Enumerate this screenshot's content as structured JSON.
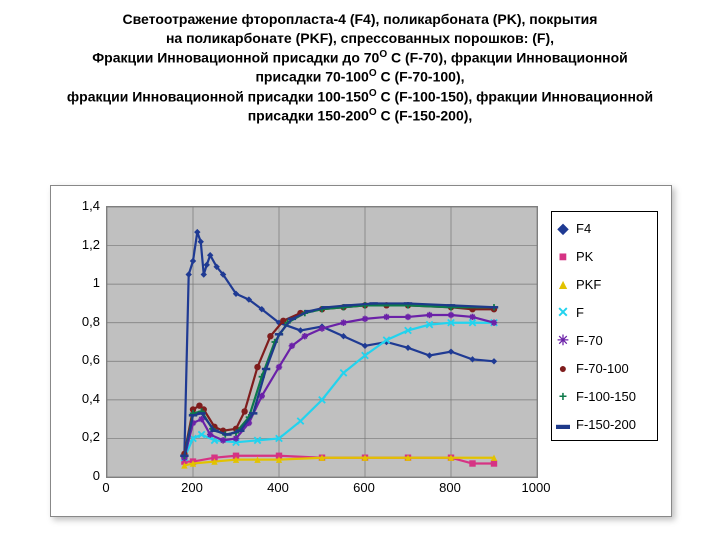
{
  "title_lines": [
    "Светоотражение фторопласта-4 (F4), поликарбоната (PK), покрытия",
    "на поликарбонате (PKF), спрессованных порошков: (F),",
    "Фракции Инновационной присадки до 70<sup>O</sup> C (F-70),  фракции Инновационной",
    "присадки 70-100<sup>O</sup> C (F-70-100),",
    "фракции Инновационной присадки 100-150<sup>O</sup> C (F-100-150), фракции Инновационной",
    "присадки 150-200<sup>O</sup> C (F-150-200),"
  ],
  "chart": {
    "type": "scatter-line",
    "xlim": [
      0,
      1000
    ],
    "ylim": [
      0,
      1.4
    ],
    "xticks": [
      0,
      200,
      400,
      600,
      800,
      1000
    ],
    "yticks": [
      0,
      0.2,
      0.4,
      0.6,
      0.8,
      1,
      1.2,
      1.4
    ],
    "ytick_labels": [
      "0",
      "0,2",
      "0,4",
      "0,6",
      "0,8",
      "1",
      "1,2",
      "1,4"
    ],
    "plot_bg": "#c0c0c0",
    "grid_color": "#777777",
    "outer_border": "#888888",
    "legend_border": "#000000",
    "series": [
      {
        "name": "F4",
        "color": "#1f3a93",
        "marker": "diamond",
        "points": [
          [
            180,
            0.12
          ],
          [
            190,
            1.05
          ],
          [
            200,
            1.12
          ],
          [
            210,
            1.27
          ],
          [
            218,
            1.22
          ],
          [
            225,
            1.05
          ],
          [
            232,
            1.1
          ],
          [
            240,
            1.15
          ],
          [
            255,
            1.09
          ],
          [
            270,
            1.05
          ],
          [
            300,
            0.95
          ],
          [
            330,
            0.92
          ],
          [
            360,
            0.87
          ],
          [
            400,
            0.8
          ],
          [
            450,
            0.76
          ],
          [
            500,
            0.78
          ],
          [
            550,
            0.73
          ],
          [
            600,
            0.68
          ],
          [
            650,
            0.7
          ],
          [
            700,
            0.67
          ],
          [
            750,
            0.63
          ],
          [
            800,
            0.65
          ],
          [
            850,
            0.61
          ],
          [
            900,
            0.6
          ]
        ]
      },
      {
        "name": "PK",
        "color": "#d63384",
        "marker": "square",
        "points": [
          [
            180,
            0.08
          ],
          [
            200,
            0.08
          ],
          [
            250,
            0.1
          ],
          [
            300,
            0.11
          ],
          [
            400,
            0.11
          ],
          [
            500,
            0.1
          ],
          [
            600,
            0.1
          ],
          [
            700,
            0.1
          ],
          [
            800,
            0.1
          ],
          [
            850,
            0.07
          ],
          [
            900,
            0.07
          ]
        ]
      },
      {
        "name": "PKF",
        "color": "#e2c200",
        "marker": "triangle",
        "points": [
          [
            180,
            0.06
          ],
          [
            200,
            0.07
          ],
          [
            250,
            0.08
          ],
          [
            300,
            0.09
          ],
          [
            350,
            0.09
          ],
          [
            400,
            0.09
          ],
          [
            500,
            0.1
          ],
          [
            600,
            0.1
          ],
          [
            700,
            0.1
          ],
          [
            800,
            0.1
          ],
          [
            900,
            0.1
          ]
        ]
      },
      {
        "name": "F",
        "color": "#22d3ee",
        "marker": "x",
        "points": [
          [
            180,
            0.1
          ],
          [
            200,
            0.2
          ],
          [
            220,
            0.22
          ],
          [
            250,
            0.19
          ],
          [
            300,
            0.18
          ],
          [
            350,
            0.19
          ],
          [
            400,
            0.2
          ],
          [
            450,
            0.29
          ],
          [
            500,
            0.4
          ],
          [
            550,
            0.54
          ],
          [
            600,
            0.63
          ],
          [
            650,
            0.71
          ],
          [
            700,
            0.76
          ],
          [
            750,
            0.79
          ],
          [
            800,
            0.8
          ],
          [
            850,
            0.8
          ],
          [
            900,
            0.8
          ]
        ]
      },
      {
        "name": "F-70",
        "color": "#6b21a8",
        "marker": "asterisk",
        "points": [
          [
            180,
            0.1
          ],
          [
            200,
            0.28
          ],
          [
            220,
            0.3
          ],
          [
            240,
            0.22
          ],
          [
            270,
            0.19
          ],
          [
            300,
            0.2
          ],
          [
            330,
            0.28
          ],
          [
            360,
            0.42
          ],
          [
            400,
            0.57
          ],
          [
            430,
            0.68
          ],
          [
            460,
            0.73
          ],
          [
            500,
            0.77
          ],
          [
            550,
            0.8
          ],
          [
            600,
            0.82
          ],
          [
            650,
            0.83
          ],
          [
            700,
            0.83
          ],
          [
            750,
            0.84
          ],
          [
            800,
            0.84
          ],
          [
            850,
            0.83
          ],
          [
            900,
            0.8
          ]
        ]
      },
      {
        "name": "F-70-100",
        "color": "#7f1d1d",
        "marker": "circle",
        "points": [
          [
            180,
            0.12
          ],
          [
            200,
            0.35
          ],
          [
            215,
            0.37
          ],
          [
            225,
            0.35
          ],
          [
            250,
            0.26
          ],
          [
            270,
            0.24
          ],
          [
            300,
            0.25
          ],
          [
            320,
            0.34
          ],
          [
            350,
            0.57
          ],
          [
            380,
            0.73
          ],
          [
            410,
            0.81
          ],
          [
            450,
            0.85
          ],
          [
            500,
            0.87
          ],
          [
            550,
            0.88
          ],
          [
            600,
            0.89
          ],
          [
            650,
            0.89
          ],
          [
            700,
            0.89
          ],
          [
            800,
            0.88
          ],
          [
            850,
            0.87
          ],
          [
            900,
            0.87
          ]
        ]
      },
      {
        "name": "F-100-150",
        "color": "#0d7a4a",
        "marker": "plus",
        "points": [
          [
            180,
            0.11
          ],
          [
            200,
            0.33
          ],
          [
            220,
            0.34
          ],
          [
            245,
            0.25
          ],
          [
            275,
            0.22
          ],
          [
            300,
            0.23
          ],
          [
            330,
            0.31
          ],
          [
            360,
            0.52
          ],
          [
            390,
            0.7
          ],
          [
            420,
            0.8
          ],
          [
            460,
            0.85
          ],
          [
            500,
            0.87
          ],
          [
            550,
            0.88
          ],
          [
            600,
            0.89
          ],
          [
            700,
            0.89
          ],
          [
            800,
            0.88
          ],
          [
            900,
            0.88
          ]
        ]
      },
      {
        "name": "F-150-200",
        "color": "#1e3a8a",
        "marker": "dash",
        "points": [
          [
            180,
            0.11
          ],
          [
            200,
            0.32
          ],
          [
            220,
            0.33
          ],
          [
            250,
            0.24
          ],
          [
            280,
            0.22
          ],
          [
            310,
            0.24
          ],
          [
            340,
            0.33
          ],
          [
            370,
            0.56
          ],
          [
            400,
            0.74
          ],
          [
            430,
            0.82
          ],
          [
            470,
            0.86
          ],
          [
            510,
            0.88
          ],
          [
            560,
            0.89
          ],
          [
            620,
            0.9
          ],
          [
            700,
            0.9
          ],
          [
            800,
            0.89
          ],
          [
            900,
            0.88
          ]
        ]
      }
    ]
  },
  "legend_markers": {
    "diamond": "◆",
    "square": "■",
    "triangle": "▲",
    "x": "✕",
    "asterisk": "✳",
    "circle": "●",
    "plus": "+",
    "dash": "▬"
  }
}
